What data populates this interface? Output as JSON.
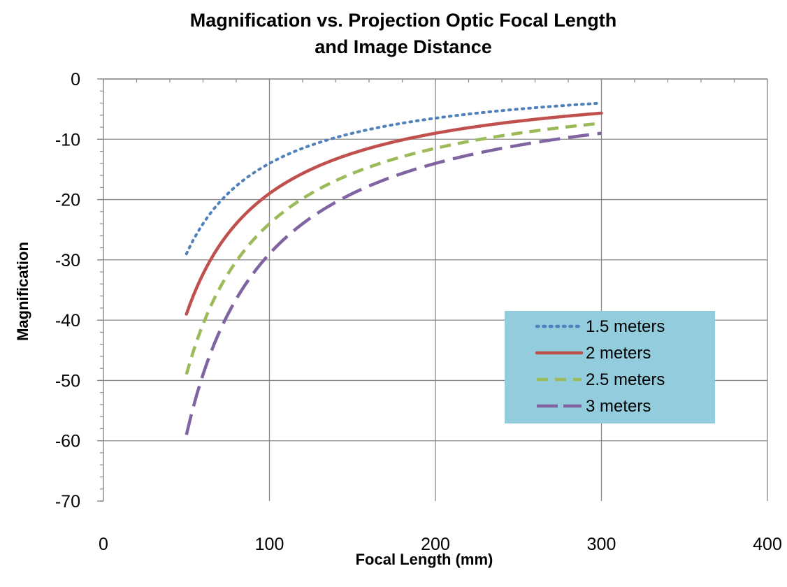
{
  "chart_data": {
    "type": "line",
    "title_line1": "Magnification vs. Projection Optic Focal Length",
    "title_line2": "and Image Distance",
    "xlabel": "Focal Length (mm)",
    "ylabel": "Magnification",
    "xlim": [
      0,
      400
    ],
    "ylim": [
      -70,
      0
    ],
    "x_ticks": [
      0,
      100,
      200,
      300,
      400
    ],
    "y_ticks": [
      0,
      -10,
      -20,
      -30,
      -40,
      -50,
      -60,
      -70
    ],
    "grid": true,
    "legend_position": "right",
    "colors": {
      "series_1": "#4f81bd",
      "series_2": "#c0504d",
      "series_3": "#9bbb59",
      "series_4": "#8064a2",
      "legend_bg": "#93cddd",
      "grid": "#888888",
      "axis": "#888888"
    },
    "series": [
      {
        "name": "1.5 meters",
        "image_distance_mm": 1500,
        "style": "dotted",
        "x_range": [
          50,
          300
        ],
        "y_at_x_min": -29,
        "y_at_x_max": -4
      },
      {
        "name": "2 meters",
        "image_distance_mm": 2000,
        "style": "solid",
        "x_range": [
          50,
          300
        ],
        "y_at_x_min": -39,
        "y_at_x_max": -5.7
      },
      {
        "name": "2.5 meters",
        "image_distance_mm": 2500,
        "style": "dashed",
        "x_range": [
          50,
          300
        ],
        "y_at_x_min": -49,
        "y_at_x_max": -7.3
      },
      {
        "name": "3 meters",
        "image_distance_mm": 3000,
        "style": "long-dash",
        "x_range": [
          50,
          300
        ],
        "y_at_x_min": -59,
        "y_at_x_max": -9
      }
    ]
  }
}
